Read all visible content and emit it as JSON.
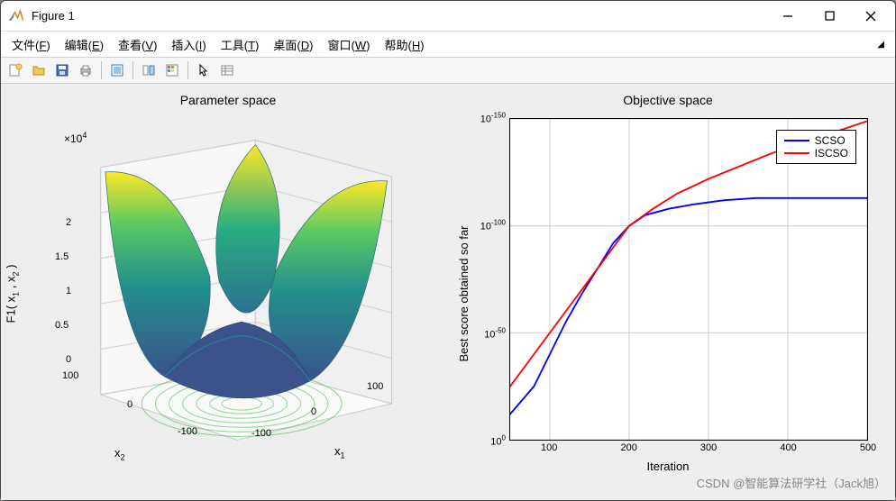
{
  "window": {
    "title": "Figure 1",
    "buttons": {
      "min": "–",
      "max": "☐",
      "close": "✕"
    }
  },
  "menu": {
    "items": [
      {
        "label": "文件",
        "hotkey": "F"
      },
      {
        "label": "编辑",
        "hotkey": "E"
      },
      {
        "label": "查看",
        "hotkey": "V"
      },
      {
        "label": "插入",
        "hotkey": "I"
      },
      {
        "label": "工具",
        "hotkey": "T"
      },
      {
        "label": "桌面",
        "hotkey": "D"
      },
      {
        "label": "窗口",
        "hotkey": "W"
      },
      {
        "label": "帮助",
        "hotkey": "H"
      }
    ]
  },
  "toolbar_icons": [
    "new",
    "open",
    "save",
    "print",
    "sep",
    "copy-fig",
    "sep",
    "link",
    "color",
    "sep",
    "pointer",
    "data-cursor"
  ],
  "left_plot": {
    "title": "Parameter space",
    "type": "3d-surface",
    "zlabel": "F1( x₁ , x₂ )",
    "zmultiplier": "×10⁴",
    "zticks": [
      "0",
      "0.5",
      "1",
      "1.5",
      "2"
    ],
    "x_axis": {
      "label": "x₁",
      "ticks": [
        "-100",
        "0",
        "100"
      ]
    },
    "y_axis": {
      "label": "x₂",
      "ticks": [
        "-100",
        "0",
        "100"
      ]
    },
    "colormap": [
      "#440154",
      "#3b528b",
      "#21918c",
      "#5ec962",
      "#fde725"
    ],
    "contour_color": "#5ec962",
    "background": "#ffffff",
    "grid_color": "#d0d0d0"
  },
  "right_plot": {
    "title": "Objective space",
    "type": "line",
    "xlabel": "Iteration",
    "ylabel": "Best score obtained so far",
    "xscale": "linear",
    "yscale": "log",
    "xlim": [
      50,
      500
    ],
    "ylim_exp": [
      -150,
      0
    ],
    "xticks": [
      100,
      200,
      300,
      400,
      500
    ],
    "yticks_exp": [
      0,
      -50,
      -100,
      -150
    ],
    "grid_color": "#d0d0d0",
    "background": "#ffffff",
    "series": [
      {
        "name": "SCSO",
        "color": "#0000ff",
        "line_width": 1.8,
        "points": [
          [
            1,
            0
          ],
          [
            15,
            -2
          ],
          [
            30,
            -5
          ],
          [
            50,
            -12
          ],
          [
            80,
            -25
          ],
          [
            100,
            -40
          ],
          [
            120,
            -55
          ],
          [
            140,
            -68
          ],
          [
            160,
            -80
          ],
          [
            180,
            -92
          ],
          [
            200,
            -100
          ],
          [
            220,
            -105
          ],
          [
            250,
            -108
          ],
          [
            280,
            -110
          ],
          [
            320,
            -112
          ],
          [
            360,
            -113
          ],
          [
            400,
            -113
          ],
          [
            450,
            -113
          ],
          [
            500,
            -113
          ]
        ]
      },
      {
        "name": "ISCSO",
        "color": "#ff0000",
        "line_width": 1.8,
        "points": [
          [
            1,
            0
          ],
          [
            20,
            -10
          ],
          [
            40,
            -20
          ],
          [
            60,
            -30
          ],
          [
            80,
            -40
          ],
          [
            100,
            -50
          ],
          [
            120,
            -60
          ],
          [
            140,
            -70
          ],
          [
            160,
            -80
          ],
          [
            180,
            -90
          ],
          [
            200,
            -100
          ],
          [
            230,
            -108
          ],
          [
            260,
            -115
          ],
          [
            300,
            -122
          ],
          [
            340,
            -128
          ],
          [
            380,
            -134
          ],
          [
            420,
            -139
          ],
          [
            460,
            -144
          ],
          [
            500,
            -149
          ]
        ]
      }
    ],
    "legend": [
      "SCSO",
      "ISCSO"
    ]
  },
  "watermark": "CSDN @智能算法研学社（Jack旭）",
  "colors": {
    "toolbar_bg": "#f5f5f5",
    "figure_bg": "#eeeeee"
  }
}
